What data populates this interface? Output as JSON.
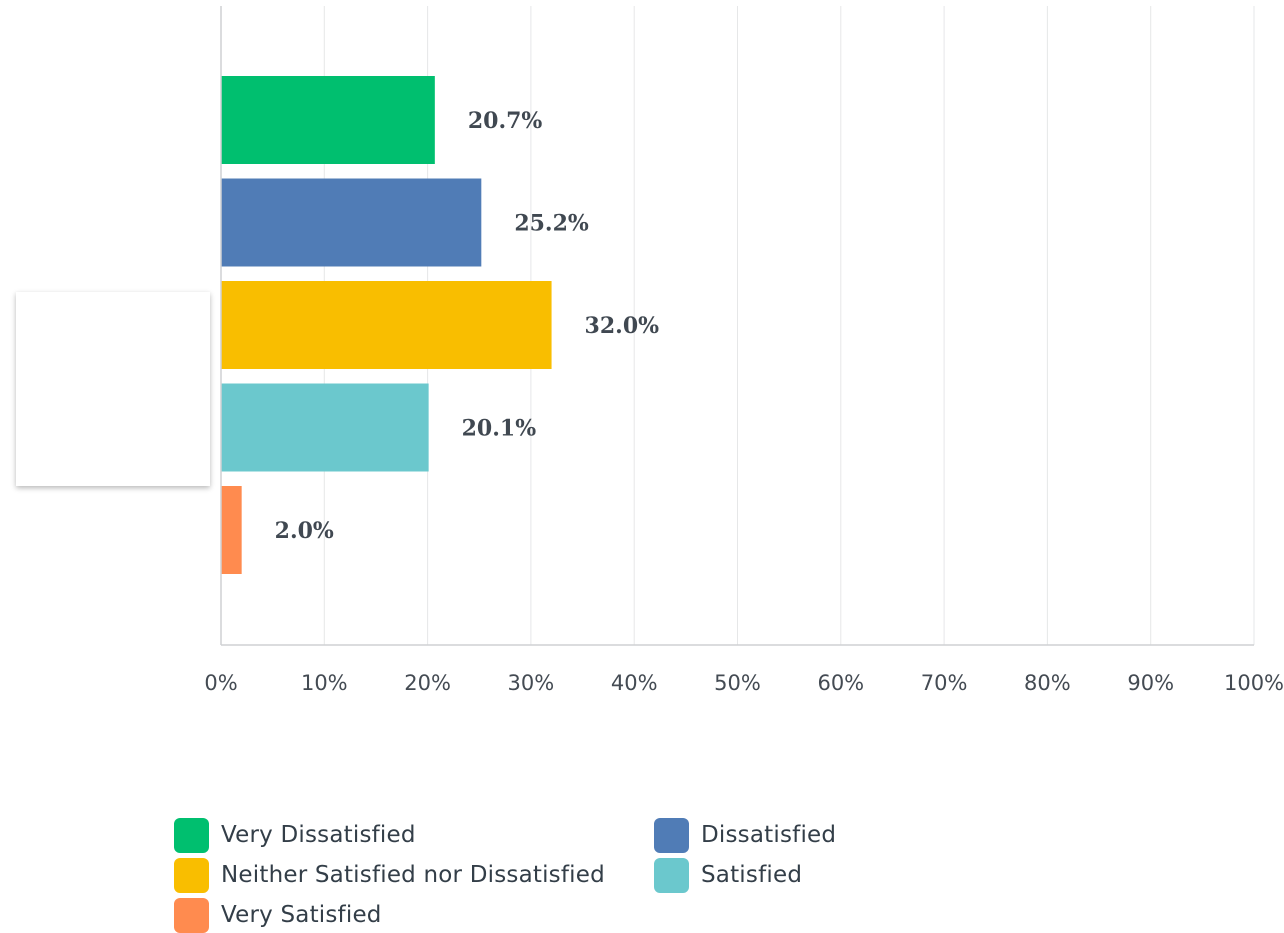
{
  "chart_data": {
    "type": "bar",
    "orientation": "horizontal",
    "categories": [
      "Very Dissatisfied",
      "Dissatisfied",
      "Neither Satisfied nor Dissatisfied",
      "Satisfied",
      "Very Satisfied"
    ],
    "values": [
      20.7,
      25.2,
      32.0,
      20.1,
      2.0
    ],
    "value_labels": [
      "20.7%",
      "25.2%",
      "32.0%",
      "20.1%",
      "2.0%"
    ],
    "colors": [
      "#00bf6f",
      "#507cb6",
      "#f9be00",
      "#6bc8cd",
      "#ff8b4f"
    ],
    "xlim": [
      0,
      100
    ],
    "x_ticks": [
      0,
      10,
      20,
      30,
      40,
      50,
      60,
      70,
      80,
      90,
      100
    ],
    "x_tick_labels": [
      "0%",
      "10%",
      "20%",
      "30%",
      "40%",
      "50%",
      "60%",
      "70%",
      "80%",
      "90%",
      "100%"
    ],
    "grid": true,
    "legend_position": "bottom",
    "title": "",
    "xlabel": "",
    "ylabel": ""
  },
  "legend": {
    "items": [
      {
        "label": "Very Dissatisfied",
        "color": "#00bf6f"
      },
      {
        "label": "Dissatisfied",
        "color": "#507cb6"
      },
      {
        "label": "Neither Satisfied nor Dissatisfied",
        "color": "#f9be00"
      },
      {
        "label": "Satisfied",
        "color": "#6bc8cd"
      },
      {
        "label": "Very Satisfied",
        "color": "#ff8b4f"
      }
    ]
  }
}
